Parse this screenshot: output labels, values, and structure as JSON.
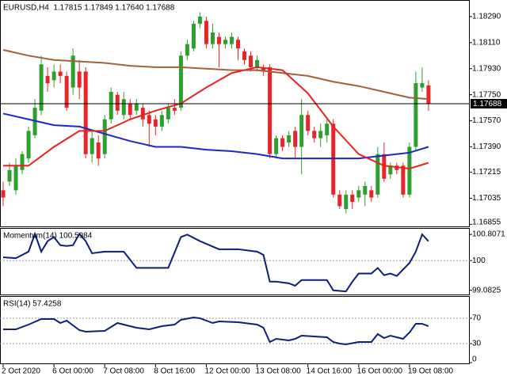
{
  "chart_data": [
    {
      "type": "candlestick",
      "title": "EURUSD,H4  1.17815 1.17849 1.17640 1.17688",
      "up_color": "#2e9e2e",
      "down_color": "#e4262a",
      "xlim": [
        -0.5,
        73.5
      ],
      "ylim": [
        1.16835,
        1.18399
      ],
      "yticks": [
        {
          "value": 1.1829,
          "label": "1.18290"
        },
        {
          "value": 1.1811,
          "label": "1.18110"
        },
        {
          "value": 1.1793,
          "label": "1.17930"
        },
        {
          "value": 1.1775,
          "label": "1.17750"
        },
        {
          "value": 1.1757,
          "label": "1.17570"
        },
        {
          "value": 1.1739,
          "label": "1.17390"
        },
        1.17215,
        1.17035,
        1.16855
      ],
      "current_price": 1.17688,
      "ohlc": [
        [
          1.1709,
          1.1715,
          1.1698,
          1.1704
        ],
        [
          1.1715,
          1.1728,
          1.1712,
          1.1723
        ],
        [
          1.1709,
          1.1731,
          1.1706,
          1.1726
        ],
        [
          1.1723,
          1.1736,
          1.172,
          1.1734
        ],
        [
          1.1731,
          1.1753,
          1.1728,
          1.175
        ],
        [
          1.1747,
          1.1772,
          1.1745,
          1.1766
        ],
        [
          1.1764,
          1.1802,
          1.1761,
          1.1796
        ],
        [
          1.1788,
          1.1794,
          1.1777,
          1.1783
        ],
        [
          1.1785,
          1.1796,
          1.178,
          1.1791
        ],
        [
          1.1791,
          1.1796,
          1.1783,
          1.1788
        ],
        [
          1.1788,
          1.1791,
          1.1764,
          1.1766
        ],
        [
          1.178,
          1.1807,
          1.1775,
          1.1802
        ],
        [
          1.1791,
          1.1799,
          1.1772,
          1.178
        ],
        [
          1.1791,
          1.1794,
          1.1731,
          1.1734
        ],
        [
          1.1734,
          1.175,
          1.1728,
          1.1745
        ],
        [
          1.1742,
          1.1747,
          1.1726,
          1.1731
        ],
        [
          1.1734,
          1.1761,
          1.1731,
          1.1758
        ],
        [
          1.1758,
          1.178,
          1.1755,
          1.1777
        ],
        [
          1.1775,
          1.1777,
          1.1761,
          1.1764
        ],
        [
          1.1761,
          1.1777,
          1.1758,
          1.1772
        ],
        [
          1.1769,
          1.1772,
          1.1758,
          1.1761
        ],
        [
          1.1764,
          1.1772,
          1.1761,
          1.1769
        ],
        [
          1.1766,
          1.1769,
          1.1753,
          1.1758
        ],
        [
          1.1761,
          1.1764,
          1.1739,
          1.1755
        ],
        [
          1.1758,
          1.1761,
          1.1747,
          1.1753
        ],
        [
          1.1753,
          1.1764,
          1.175,
          1.1761
        ],
        [
          1.1758,
          1.1769,
          1.1755,
          1.1766
        ],
        [
          1.1766,
          1.1772,
          1.1761,
          1.1764
        ],
        [
          1.1766,
          1.1805,
          1.1764,
          1.1802
        ],
        [
          1.1802,
          1.1813,
          1.1799,
          1.181
        ],
        [
          1.1807,
          1.1826,
          1.1805,
          1.1824
        ],
        [
          1.1824,
          1.1832,
          1.1821,
          1.1829
        ],
        [
          1.1826,
          1.1829,
          1.1807,
          1.181
        ],
        [
          1.181,
          1.1824,
          1.1807,
          1.1818
        ],
        [
          1.1815,
          1.1818,
          1.1794,
          1.181
        ],
        [
          1.181,
          1.1815,
          1.1807,
          1.1813
        ],
        [
          1.181,
          1.1818,
          1.1807,
          1.1815
        ],
        [
          1.1813,
          1.1815,
          1.1799,
          1.1807
        ],
        [
          1.1805,
          1.1807,
          1.1796,
          1.1799
        ],
        [
          1.1802,
          1.1805,
          1.1791,
          1.1794
        ],
        [
          1.1794,
          1.1802,
          1.1791,
          1.1799
        ],
        [
          1.1794,
          1.1796,
          1.1788,
          1.1791
        ],
        [
          1.1794,
          1.1796,
          1.1731,
          1.1734
        ],
        [
          1.1734,
          1.1747,
          1.1731,
          1.1745
        ],
        [
          1.1745,
          1.1747,
          1.1736,
          1.1739
        ],
        [
          1.1742,
          1.175,
          1.1739,
          1.1747
        ],
        [
          1.175,
          1.1753,
          1.1731,
          1.1739
        ],
        [
          1.1739,
          1.1772,
          1.172,
          1.1761
        ],
        [
          1.1761,
          1.1764,
          1.1747,
          1.175
        ],
        [
          1.175,
          1.1753,
          1.1742,
          1.1745
        ],
        [
          1.1745,
          1.1755,
          1.1739,
          1.175
        ],
        [
          1.1747,
          1.1758,
          1.1742,
          1.1755
        ],
        [
          1.1755,
          1.1758,
          1.1704,
          1.1706
        ],
        [
          1.1706,
          1.1709,
          1.1696,
          1.1698
        ],
        [
          1.1696,
          1.1709,
          1.1693,
          1.1706
        ],
        [
          1.1706,
          1.1709,
          1.1696,
          1.1701
        ],
        [
          1.1704,
          1.1712,
          1.1701,
          1.1709
        ],
        [
          1.1706,
          1.1715,
          1.1698,
          1.1712
        ],
        [
          1.1709,
          1.1712,
          1.1701,
          1.1704
        ],
        [
          1.1706,
          1.1739,
          1.1704,
          1.1734
        ],
        [
          1.1734,
          1.1742,
          1.1715,
          1.1717
        ],
        [
          1.172,
          1.1728,
          1.1717,
          1.1726
        ],
        [
          1.1726,
          1.1728,
          1.172,
          1.1723
        ],
        [
          1.1726,
          1.1728,
          1.1704,
          1.1706
        ],
        [
          1.1706,
          1.1742,
          1.1704,
          1.1739
        ],
        [
          1.1739,
          1.1791,
          1.1736,
          1.1783
        ],
        [
          1.178,
          1.1794,
          1.1777,
          1.1783
        ],
        [
          1.17815,
          1.17849,
          1.1764,
          1.17688
        ]
      ],
      "moving_averages": [
        {
          "color": "#a0623a",
          "x": [
            0,
            4,
            8,
            12,
            16,
            20,
            24,
            28,
            32,
            36,
            40,
            44,
            48,
            52,
            56,
            60,
            64,
            67
          ],
          "values": [
            1.1806,
            1.1802,
            1.1799,
            1.1798,
            1.1797,
            1.1795,
            1.1794,
            1.1794,
            1.1793,
            1.1792,
            1.1792,
            1.179,
            1.1788,
            1.1784,
            1.1781,
            1.1777,
            1.1773,
            1.1772
          ]
        },
        {
          "color": "#1a28c8",
          "x": [
            0,
            4,
            8,
            12,
            16,
            20,
            24,
            28,
            32,
            36,
            40,
            44,
            48,
            52,
            56,
            60,
            64,
            67
          ],
          "values": [
            1.1762,
            1.1758,
            1.1754,
            1.1753,
            1.1748,
            1.1743,
            1.1739,
            1.1739,
            1.1737,
            1.1736,
            1.1734,
            1.1731,
            1.1731,
            1.1731,
            1.1731,
            1.1733,
            1.1735,
            1.1739
          ]
        },
        {
          "color": "#e8231e",
          "x": [
            0,
            4,
            8,
            12,
            16,
            20,
            24,
            28,
            32,
            36,
            40,
            44,
            48,
            52,
            56,
            60,
            64,
            67
          ],
          "values": [
            1.1726,
            1.1726,
            1.1739,
            1.175,
            1.175,
            1.1758,
            1.1764,
            1.1769,
            1.178,
            1.179,
            1.1794,
            1.1792,
            1.1776,
            1.1753,
            1.1734,
            1.1726,
            1.1724,
            1.1728
          ]
        }
      ]
    },
    {
      "type": "line",
      "title": "Momentum(14) 100.5984",
      "color": "#0c1f7a",
      "xlim": [
        -0.5,
        73.5
      ],
      "ylim": [
        98.93,
        100.98
      ],
      "yticks": [
        100.8071,
        100,
        99.0825
      ],
      "levels": [
        100
      ],
      "x": [
        0,
        2,
        4,
        5,
        6,
        7,
        8,
        9,
        10,
        11,
        12,
        13,
        14,
        16,
        19,
        21,
        25,
        26,
        28,
        29,
        31,
        34,
        37,
        40,
        41,
        42,
        43,
        45,
        46,
        47,
        51,
        52,
        54,
        55,
        56,
        58,
        59,
        60,
        61,
        62,
        63,
        64,
        65,
        66,
        67
      ],
      "values": [
        100.1,
        100.075,
        100.275,
        100.825,
        100.275,
        100.6,
        100.725,
        100.475,
        100.45,
        100.475,
        100.825,
        100.6,
        100.225,
        100.275,
        100.275,
        99.775,
        99.775,
        99.775,
        100.725,
        100.8,
        100.6,
        100.35,
        100.35,
        100.275,
        100.175,
        99.35,
        99.35,
        99.3,
        99.225,
        99.4,
        99.4,
        99.0825,
        99.05,
        99.35,
        99.6,
        99.6,
        99.775,
        99.55,
        99.6,
        99.525,
        99.725,
        99.925,
        100.275,
        100.8071,
        100.5984
      ]
    },
    {
      "type": "line",
      "title": "RSI(14) 57.4258",
      "color": "#0c1f7a",
      "xlim": [
        -0.5,
        73.5
      ],
      "ylim": [
        -2.5,
        103.75
      ],
      "yticks": [
        70,
        30,
        0
      ],
      "levels": [
        70,
        30
      ],
      "xticks": [
        {
          "value": 0,
          "label": "2 Oct 2020"
        },
        {
          "value": 8,
          "label": "6 Oct 00:00"
        },
        {
          "value": 16,
          "label": "7 Oct 08:00"
        },
        {
          "value": 24,
          "label": "8 Oct 16:00"
        },
        {
          "value": 32,
          "label": "12 Oct 00:00"
        },
        {
          "value": 40,
          "label": "13 Oct 08:00"
        },
        {
          "value": 48,
          "label": "14 Oct 16:00"
        },
        {
          "value": 56,
          "label": "16 Oct 00:00"
        },
        {
          "value": 64,
          "label": "19 Oct 08:00"
        }
      ],
      "x": [
        0,
        2,
        4,
        6,
        8,
        9,
        10,
        12,
        13,
        16,
        18,
        19,
        21,
        23,
        25,
        27,
        28,
        30,
        31,
        33,
        34,
        37,
        40,
        41,
        42,
        43,
        45,
        46,
        47,
        51,
        52,
        53,
        54,
        56,
        58,
        59,
        60,
        61,
        63,
        64,
        65,
        66,
        67
      ],
      "values": [
        52.5,
        52.5,
        60,
        68.75,
        68.75,
        62.5,
        66.25,
        51.25,
        48.75,
        50,
        62.5,
        60,
        55,
        52.5,
        57.5,
        60,
        67.5,
        71.25,
        70,
        62.5,
        65,
        63.75,
        60,
        55,
        32.5,
        37.5,
        35,
        37.5,
        42.5,
        40,
        32.5,
        30,
        28.75,
        32.5,
        32.5,
        45,
        38.75,
        42.5,
        37.5,
        47.5,
        61.25,
        61.25,
        57.4258
      ]
    }
  ]
}
